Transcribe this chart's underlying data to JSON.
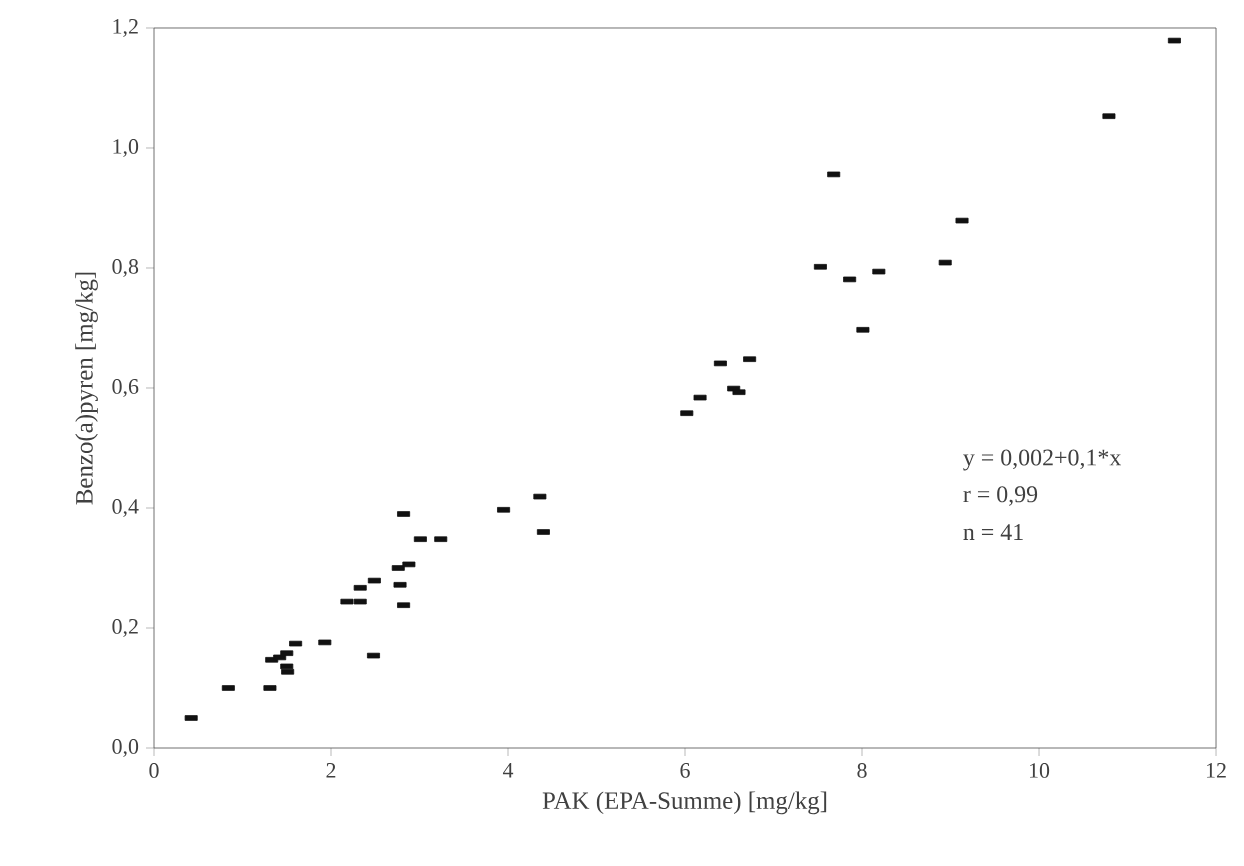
{
  "chart_data": {
    "type": "scatter",
    "xlabel": "PAK (EPA-Summe) [mg/kg]",
    "ylabel": "Benzo(a)pyren  [mg/kg]",
    "xlim": [
      0,
      12
    ],
    "xticks": [
      0,
      2,
      4,
      6,
      8,
      10,
      12
    ],
    "ylim": [
      0,
      1.2
    ],
    "yticks": [
      {
        "value": 0,
        "label": "0,0"
      },
      {
        "value": 0.2,
        "label": "0,2"
      },
      {
        "value": 0.4,
        "label": "0,4"
      },
      {
        "value": 0.6,
        "label": "0,6"
      },
      {
        "value": 0.8,
        "label": "0,8"
      },
      {
        "value": 1.0,
        "label": "1,0"
      },
      {
        "value": 1.2,
        "label": "1,2"
      }
    ],
    "marker": "square",
    "grid": false,
    "annotations": [
      "y = 0,002+0,1*x",
      "r = 0,99",
      "n = 41"
    ],
    "series": [
      {
        "color": "#111111",
        "x": [
          0.42,
          0.84,
          1.31,
          1.33,
          1.42,
          1.5,
          1.6,
          1.5,
          1.51,
          1.93,
          2.48,
          2.18,
          2.33,
          2.33,
          2.49,
          2.78,
          2.82,
          2.76,
          2.88,
          2.82,
          3.01,
          3.24,
          3.95,
          4.36,
          4.4,
          6.02,
          6.17,
          6.4,
          6.55,
          6.61,
          6.73,
          7.53,
          7.68,
          7.86,
          8.01,
          8.19,
          8.94,
          9.13,
          10.79,
          11.53
        ],
        "values": [
          0.05,
          0.1,
          0.1,
          0.147,
          0.151,
          0.158,
          0.174,
          0.136,
          0.127,
          0.176,
          0.154,
          0.244,
          0.244,
          0.267,
          0.279,
          0.272,
          0.238,
          0.3,
          0.306,
          0.39,
          0.348,
          0.348,
          0.397,
          0.419,
          0.36,
          0.558,
          0.584,
          0.641,
          0.599,
          0.593,
          0.648,
          0.802,
          0.956,
          0.781,
          0.697,
          0.794,
          0.809,
          0.879,
          1.053,
          1.179
        ]
      }
    ]
  }
}
